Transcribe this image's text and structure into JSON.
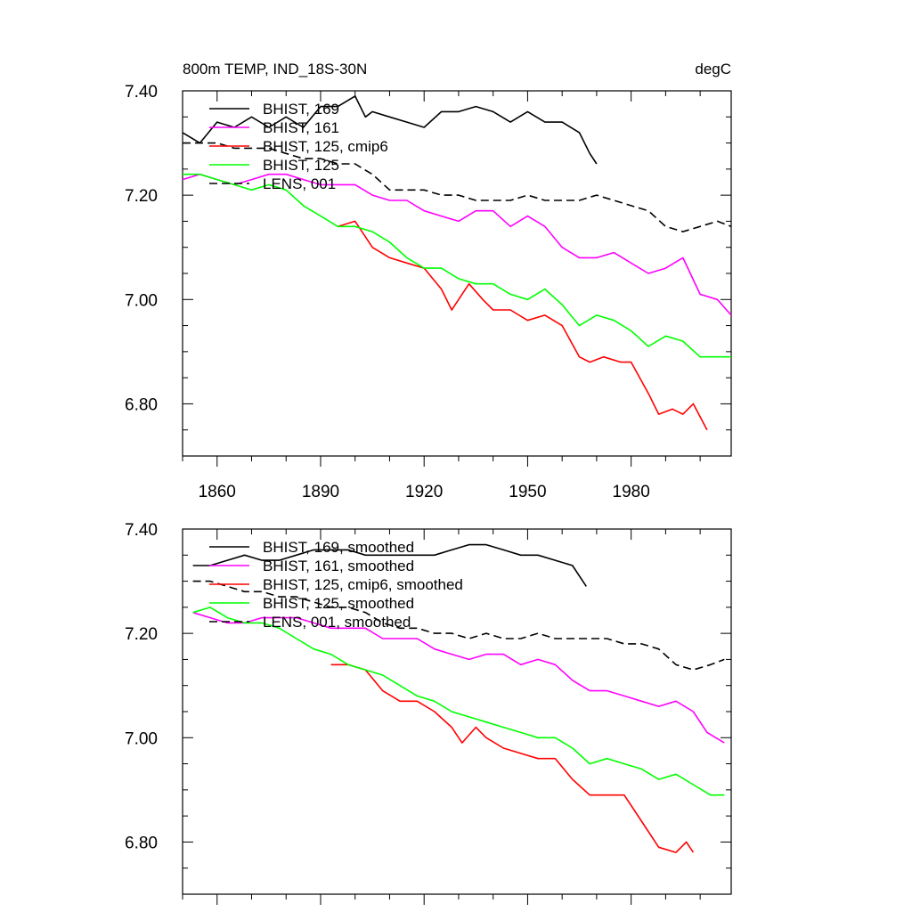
{
  "chart_data": [
    {
      "type": "line",
      "title": "800m TEMP, IND_18S-30N",
      "units": "degC",
      "xlim": [
        1850,
        2009
      ],
      "ylim": [
        6.7,
        7.4
      ],
      "x_ticks": [
        1860,
        1890,
        1920,
        1950,
        1980
      ],
      "x_tick_labels": [
        "1860",
        "1890",
        "1920",
        "1950",
        "1980"
      ],
      "y_ticks": [
        6.8,
        7.0,
        7.2,
        7.4
      ],
      "y_tick_labels": [
        "6.80",
        "7.00",
        "7.20",
        "7.40"
      ],
      "legend_position": "top-left",
      "series": [
        {
          "name": "BHIST, 169",
          "color": "#000000",
          "dash": "solid",
          "x": [
            1850,
            1855,
            1860,
            1865,
            1870,
            1875,
            1880,
            1885,
            1890,
            1895,
            1900,
            1903,
            1905,
            1910,
            1915,
            1920,
            1925,
            1930,
            1935,
            1940,
            1945,
            1950,
            1955,
            1960,
            1965,
            1968,
            1970
          ],
          "y": [
            7.32,
            7.3,
            7.34,
            7.33,
            7.35,
            7.33,
            7.35,
            7.33,
            7.37,
            7.37,
            7.39,
            7.35,
            7.36,
            7.35,
            7.34,
            7.33,
            7.36,
            7.36,
            7.37,
            7.36,
            7.34,
            7.36,
            7.34,
            7.34,
            7.32,
            7.28,
            7.26
          ]
        },
        {
          "name": "BHIST, 161",
          "color": "#ff00ff",
          "dash": "solid",
          "x": [
            1850,
            1855,
            1860,
            1865,
            1870,
            1875,
            1880,
            1885,
            1890,
            1895,
            1900,
            1905,
            1910,
            1915,
            1920,
            1925,
            1930,
            1935,
            1940,
            1945,
            1950,
            1955,
            1960,
            1965,
            1970,
            1975,
            1980,
            1985,
            1990,
            1995,
            2000,
            2005,
            2009
          ],
          "y": [
            7.23,
            7.24,
            7.23,
            7.22,
            7.23,
            7.24,
            7.24,
            7.23,
            7.22,
            7.22,
            7.22,
            7.2,
            7.19,
            7.19,
            7.17,
            7.16,
            7.15,
            7.17,
            7.17,
            7.14,
            7.16,
            7.14,
            7.1,
            7.08,
            7.08,
            7.09,
            7.07,
            7.05,
            7.06,
            7.08,
            7.01,
            7.0,
            6.97
          ]
        },
        {
          "name": "BHIST, 125, cmip6",
          "color": "#ff0000",
          "dash": "solid",
          "x": [
            1895,
            1900,
            1905,
            1910,
            1915,
            1920,
            1925,
            1928,
            1933,
            1937,
            1940,
            1945,
            1950,
            1955,
            1960,
            1965,
            1968,
            1972,
            1977,
            1980,
            1985,
            1988,
            1992,
            1995,
            1998,
            2002
          ],
          "y": [
            7.14,
            7.15,
            7.1,
            7.08,
            7.07,
            7.06,
            7.02,
            6.98,
            7.03,
            7.0,
            6.98,
            6.98,
            6.96,
            6.97,
            6.95,
            6.89,
            6.88,
            6.89,
            6.88,
            6.88,
            6.82,
            6.78,
            6.79,
            6.78,
            6.8,
            6.75
          ]
        },
        {
          "name": "BHIST, 125",
          "color": "#00ff00",
          "dash": "solid",
          "x": [
            1850,
            1855,
            1860,
            1865,
            1870,
            1875,
            1880,
            1885,
            1890,
            1895,
            1900,
            1905,
            1910,
            1915,
            1920,
            1925,
            1930,
            1935,
            1940,
            1945,
            1950,
            1955,
            1960,
            1965,
            1970,
            1975,
            1980,
            1985,
            1990,
            1995,
            2000,
            2005,
            2009
          ],
          "y": [
            7.24,
            7.24,
            7.23,
            7.22,
            7.21,
            7.22,
            7.21,
            7.18,
            7.16,
            7.14,
            7.14,
            7.13,
            7.11,
            7.08,
            7.06,
            7.06,
            7.04,
            7.03,
            7.03,
            7.01,
            7.0,
            7.02,
            6.99,
            6.95,
            6.97,
            6.96,
            6.94,
            6.91,
            6.93,
            6.92,
            6.89,
            6.89,
            6.89
          ]
        },
        {
          "name": "LENS, 001",
          "color": "#000000",
          "dash": "dashed",
          "x": [
            1850,
            1855,
            1860,
            1865,
            1870,
            1875,
            1880,
            1885,
            1890,
            1895,
            1900,
            1905,
            1910,
            1915,
            1920,
            1925,
            1930,
            1935,
            1940,
            1945,
            1950,
            1955,
            1960,
            1965,
            1970,
            1975,
            1980,
            1985,
            1990,
            1995,
            2000,
            2005,
            2009
          ],
          "y": [
            7.3,
            7.3,
            7.3,
            7.29,
            7.29,
            7.29,
            7.28,
            7.27,
            7.27,
            7.26,
            7.26,
            7.24,
            7.21,
            7.21,
            7.21,
            7.2,
            7.2,
            7.19,
            7.19,
            7.19,
            7.2,
            7.19,
            7.19,
            7.19,
            7.2,
            7.19,
            7.18,
            7.17,
            7.14,
            7.13,
            7.14,
            7.15,
            7.14
          ]
        }
      ]
    },
    {
      "type": "line",
      "xlim": [
        1850,
        2009
      ],
      "ylim": [
        6.7,
        7.4
      ],
      "x_ticks": [
        1860,
        1890,
        1920,
        1950,
        1980
      ],
      "y_ticks": [
        6.8,
        7.0,
        7.2,
        7.4
      ],
      "y_tick_labels": [
        "6.80",
        "7.00",
        "7.20",
        "7.40"
      ],
      "legend_position": "top-left",
      "series": [
        {
          "name": "BHIST, 169, smoothed",
          "color": "#000000",
          "dash": "solid",
          "x": [
            1853,
            1858,
            1863,
            1868,
            1873,
            1878,
            1883,
            1888,
            1893,
            1898,
            1903,
            1908,
            1913,
            1918,
            1923,
            1928,
            1933,
            1938,
            1943,
            1948,
            1953,
            1958,
            1963,
            1967
          ],
          "y": [
            7.33,
            7.33,
            7.34,
            7.35,
            7.34,
            7.34,
            7.35,
            7.36,
            7.36,
            7.36,
            7.35,
            7.35,
            7.35,
            7.35,
            7.35,
            7.36,
            7.37,
            7.37,
            7.36,
            7.35,
            7.35,
            7.34,
            7.33,
            7.29
          ]
        },
        {
          "name": "BHIST, 161, smoothed",
          "color": "#ff00ff",
          "dash": "solid",
          "x": [
            1853,
            1858,
            1863,
            1868,
            1873,
            1878,
            1883,
            1888,
            1893,
            1898,
            1903,
            1908,
            1913,
            1918,
            1923,
            1928,
            1933,
            1938,
            1943,
            1948,
            1953,
            1958,
            1963,
            1968,
            1973,
            1978,
            1983,
            1988,
            1993,
            1998,
            2002,
            2007
          ],
          "y": [
            7.24,
            7.23,
            7.22,
            7.22,
            7.23,
            7.23,
            7.23,
            7.22,
            7.21,
            7.21,
            7.21,
            7.19,
            7.19,
            7.19,
            7.17,
            7.16,
            7.15,
            7.16,
            7.16,
            7.14,
            7.15,
            7.14,
            7.11,
            7.09,
            7.09,
            7.08,
            7.07,
            7.06,
            7.07,
            7.05,
            7.01,
            6.99
          ]
        },
        {
          "name": "BHIST, 125, cmip6, smoothed",
          "color": "#ff0000",
          "dash": "solid",
          "x": [
            1893,
            1898,
            1903,
            1908,
            1913,
            1918,
            1923,
            1928,
            1931,
            1935,
            1938,
            1943,
            1948,
            1953,
            1958,
            1963,
            1968,
            1973,
            1978,
            1983,
            1988,
            1993,
            1996,
            1998
          ],
          "y": [
            7.14,
            7.14,
            7.13,
            7.09,
            7.07,
            7.07,
            7.05,
            7.02,
            6.99,
            7.02,
            7.0,
            6.98,
            6.97,
            6.96,
            6.96,
            6.92,
            6.89,
            6.89,
            6.89,
            6.84,
            6.79,
            6.78,
            6.8,
            6.78
          ]
        },
        {
          "name": "BHIST, 125, smoothed",
          "color": "#00ff00",
          "dash": "solid",
          "x": [
            1853,
            1858,
            1863,
            1868,
            1873,
            1878,
            1883,
            1888,
            1893,
            1898,
            1903,
            1908,
            1913,
            1918,
            1923,
            1928,
            1933,
            1938,
            1943,
            1948,
            1953,
            1958,
            1963,
            1968,
            1973,
            1978,
            1983,
            1988,
            1993,
            1998,
            2003,
            2007
          ],
          "y": [
            7.24,
            7.25,
            7.23,
            7.22,
            7.22,
            7.21,
            7.19,
            7.17,
            7.16,
            7.14,
            7.13,
            7.12,
            7.1,
            7.08,
            7.07,
            7.05,
            7.04,
            7.03,
            7.02,
            7.01,
            7.0,
            7.0,
            6.98,
            6.95,
            6.96,
            6.95,
            6.94,
            6.92,
            6.93,
            6.91,
            6.89,
            6.89
          ]
        },
        {
          "name": "LENS, 001, smoothed",
          "color": "#000000",
          "dash": "dashed",
          "x": [
            1853,
            1858,
            1863,
            1868,
            1873,
            1878,
            1883,
            1888,
            1893,
            1898,
            1903,
            1908,
            1913,
            1918,
            1923,
            1928,
            1933,
            1938,
            1943,
            1948,
            1953,
            1958,
            1963,
            1968,
            1973,
            1978,
            1983,
            1988,
            1993,
            1998,
            2003,
            2007
          ],
          "y": [
            7.3,
            7.3,
            7.29,
            7.28,
            7.28,
            7.27,
            7.27,
            7.26,
            7.25,
            7.25,
            7.24,
            7.22,
            7.21,
            7.21,
            7.2,
            7.2,
            7.19,
            7.2,
            7.19,
            7.19,
            7.2,
            7.19,
            7.19,
            7.19,
            7.19,
            7.18,
            7.18,
            7.17,
            7.14,
            7.13,
            7.14,
            7.15
          ]
        }
      ]
    }
  ]
}
